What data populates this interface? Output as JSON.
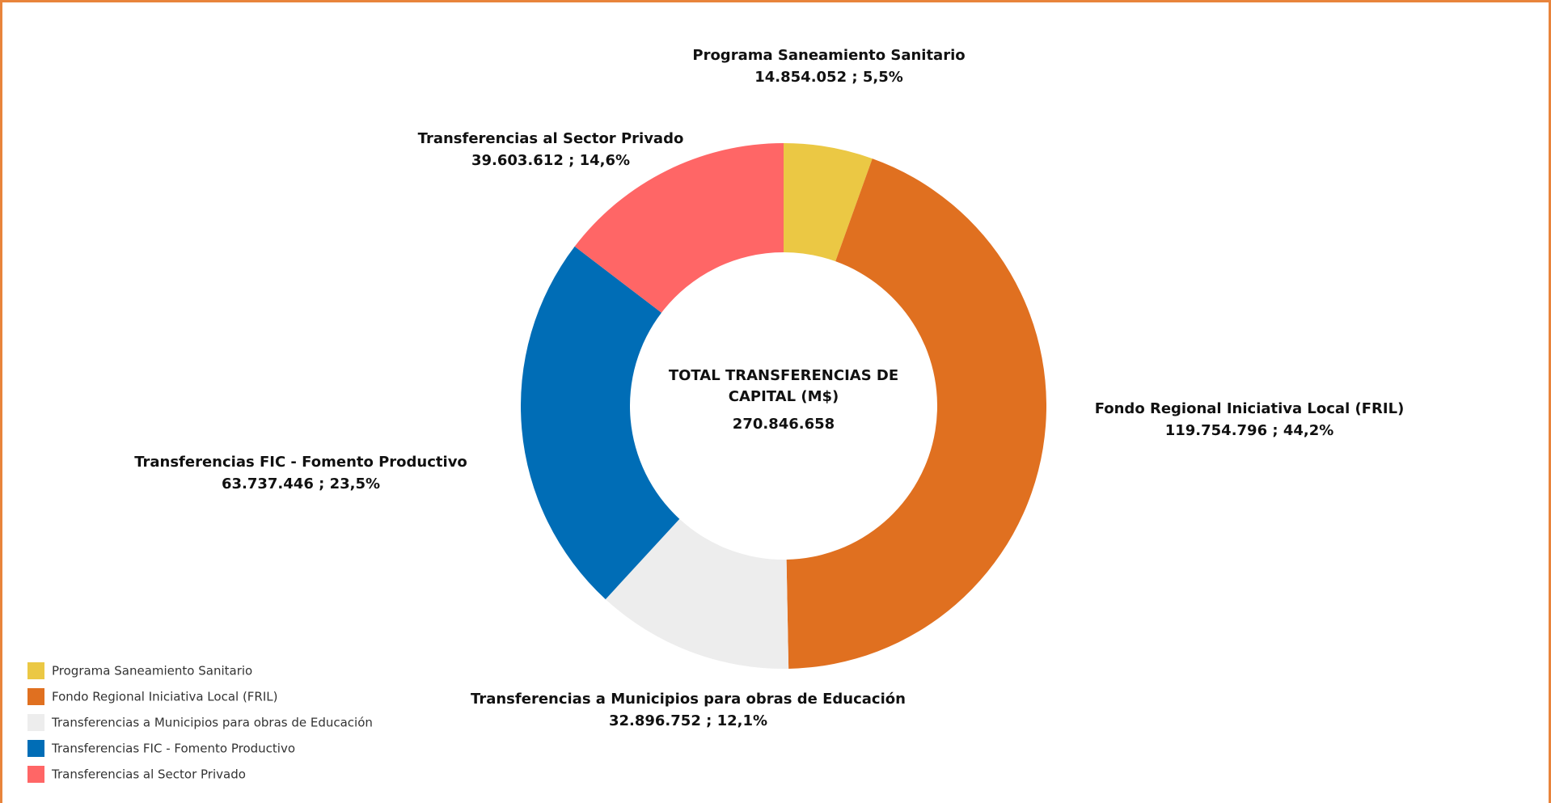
{
  "chart_data": {
    "type": "donut",
    "center_title": "TOTAL TRANSFERENCIAS DE CAPITAL (M$)",
    "center_value": "270.846.658",
    "categories": [
      "Programa Saneamiento Sanitario",
      "Fondo Regional Iniciativa Local (FRIL)",
      "Transferencias a Municipios para obras de Educación",
      "Transferencias FIC - Fomento Productivo",
      "Transferencias al Sector Privado"
    ],
    "values": [
      14854052,
      119754796,
      32896752,
      63737446,
      39603612
    ],
    "value_labels": [
      "14.854.052 ; 5,5%",
      "119.754.796 ; 44,2%",
      "32.896.752 ; 12,1%",
      "63.737.446 ; 23,5%",
      "39.603.612 ; 14,6%"
    ],
    "colors": [
      "#ebc844",
      "#e07020",
      "#ededed",
      "#006db6",
      "#ff6666"
    ],
    "legend": "bottom-left"
  }
}
